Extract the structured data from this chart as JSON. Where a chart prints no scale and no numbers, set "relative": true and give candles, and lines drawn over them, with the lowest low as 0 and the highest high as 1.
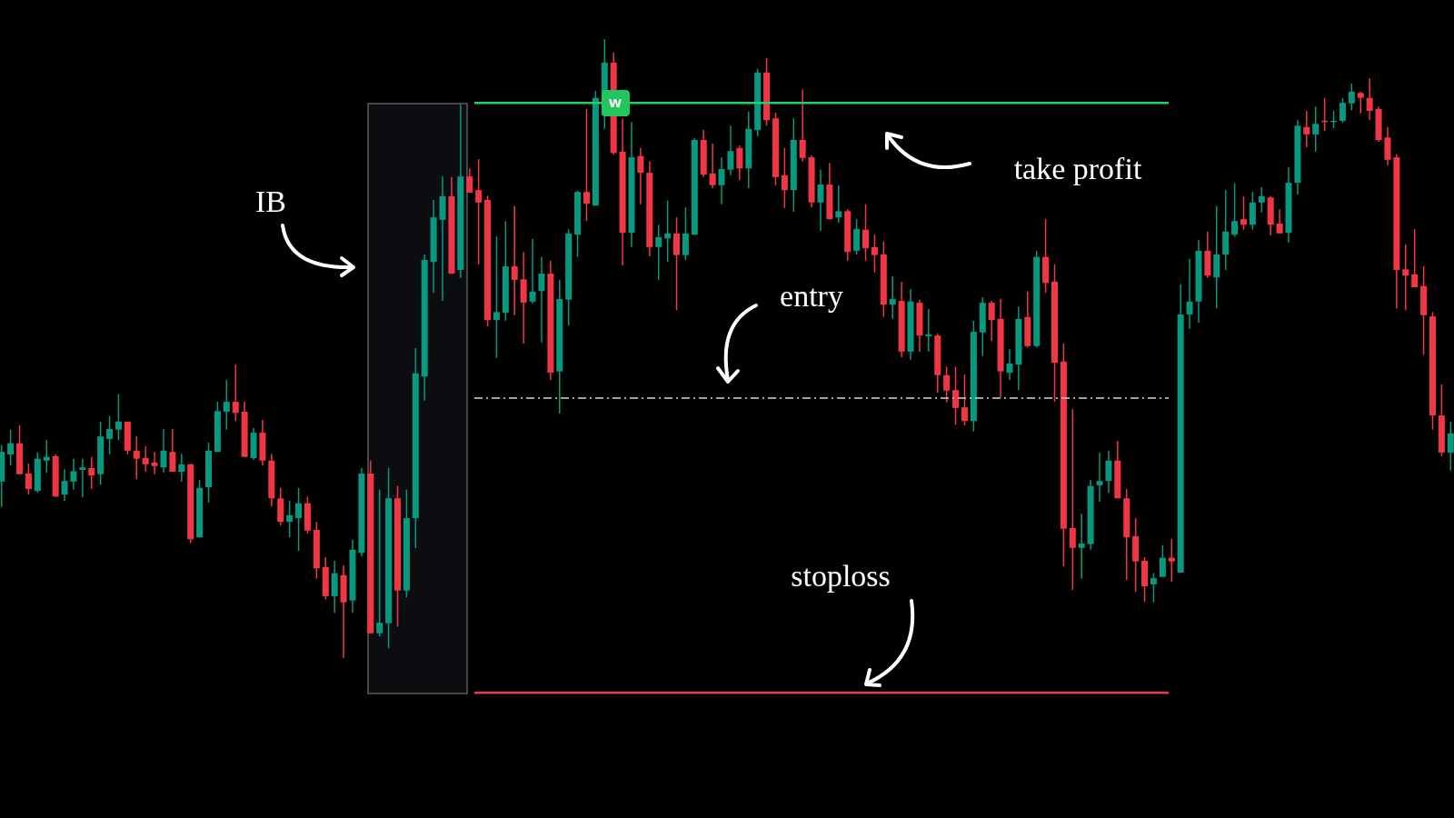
{
  "chart_data": {
    "type": "candlestick",
    "relative": true,
    "categories": [
      null,
      null,
      null,
      null,
      null,
      null,
      null,
      null,
      null,
      null,
      null,
      null,
      null,
      null,
      null,
      null,
      null,
      null,
      null,
      null,
      null,
      null,
      null,
      null,
      null,
      null,
      null,
      null,
      null,
      null,
      null,
      null,
      null,
      null,
      null,
      null,
      null,
      null,
      null,
      null,
      null,
      null,
      null,
      null,
      null,
      null,
      null,
      null,
      null,
      null,
      null,
      null,
      null,
      null,
      null,
      null,
      null,
      null,
      null,
      null,
      null,
      null,
      null,
      null,
      null,
      null,
      null,
      null,
      null,
      null,
      null,
      null,
      null,
      null,
      null,
      null,
      null,
      null,
      null,
      null,
      null,
      null,
      null,
      null,
      null,
      null,
      null,
      null,
      null,
      null,
      null,
      null,
      null,
      null,
      null,
      null,
      null,
      null,
      null,
      null,
      null,
      null,
      null,
      null,
      null,
      null,
      null,
      null,
      null,
      null,
      null,
      null,
      null,
      null,
      null,
      null,
      null,
      null,
      null,
      null,
      null,
      null,
      null,
      null,
      null,
      null,
      null,
      null,
      null,
      null,
      null,
      null,
      null,
      null,
      null,
      null,
      null,
      null,
      null,
      null,
      null,
      null,
      null,
      null,
      null,
      null,
      null,
      null,
      null,
      null,
      null,
      null,
      null,
      null,
      null,
      null,
      null,
      null,
      null,
      null,
      null,
      null
    ],
    "ohlc": [
      [
        0.285,
        0.344,
        0.244,
        0.333
      ],
      [
        0.329,
        0.369,
        0.311,
        0.347
      ],
      [
        0.347,
        0.376,
        0.297,
        0.297
      ],
      [
        0.298,
        0.314,
        0.264,
        0.273
      ],
      [
        0.27,
        0.332,
        0.267,
        0.322
      ],
      [
        0.319,
        0.352,
        0.3,
        0.325
      ],
      [
        0.326,
        0.329,
        0.26,
        0.261
      ],
      [
        0.264,
        0.305,
        0.254,
        0.286
      ],
      [
        0.285,
        0.322,
        0.272,
        0.302
      ],
      [
        0.304,
        0.322,
        0.26,
        0.308
      ],
      [
        0.307,
        0.325,
        0.273,
        0.295
      ],
      [
        0.297,
        0.382,
        0.28,
        0.358
      ],
      [
        0.354,
        0.391,
        0.329,
        0.37
      ],
      [
        0.369,
        0.426,
        0.352,
        0.382
      ],
      [
        0.382,
        0.382,
        0.329,
        0.335
      ],
      [
        0.335,
        0.358,
        0.289,
        0.322
      ],
      [
        0.323,
        0.342,
        0.301,
        0.313
      ],
      [
        0.316,
        0.333,
        0.297,
        0.31
      ],
      [
        0.308,
        0.37,
        0.3,
        0.335
      ],
      [
        0.333,
        0.37,
        0.301,
        0.301
      ],
      [
        0.301,
        0.33,
        0.285,
        0.313
      ],
      [
        0.313,
        0.314,
        0.186,
        0.192
      ],
      [
        0.195,
        0.288,
        0.195,
        0.275
      ],
      [
        0.276,
        0.348,
        0.251,
        0.335
      ],
      [
        0.333,
        0.414,
        0.333,
        0.399
      ],
      [
        0.398,
        0.449,
        0.369,
        0.414
      ],
      [
        0.414,
        0.474,
        0.383,
        0.396
      ],
      [
        0.398,
        0.414,
        0.325,
        0.325
      ],
      [
        0.323,
        0.372,
        0.32,
        0.364
      ],
      [
        0.364,
        0.385,
        0.311,
        0.319
      ],
      [
        0.319,
        0.33,
        0.245,
        0.258
      ],
      [
        0.258,
        0.275,
        0.214,
        0.22
      ],
      [
        0.22,
        0.254,
        0.195,
        0.231
      ],
      [
        0.226,
        0.275,
        0.173,
        0.25
      ],
      [
        0.25,
        0.261,
        0.201,
        0.206
      ],
      [
        0.207,
        0.22,
        0.128,
        0.145
      ],
      [
        0.147,
        0.163,
        0.095,
        0.1
      ],
      [
        0.1,
        0.157,
        0.073,
        0.137
      ],
      [
        0.134,
        0.15,
        0,
        0.09
      ],
      [
        0.093,
        0.191,
        0.073,
        0.175
      ],
      [
        0.17,
        0.307,
        0.164,
        0.298
      ],
      [
        0.298,
        0.319,
        0.04,
        0.04
      ],
      [
        0.04,
        0.272,
        0.035,
        0.057
      ],
      [
        0.056,
        0.307,
        0.016,
        0.258
      ],
      [
        0.258,
        0.278,
        0.051,
        0.109
      ],
      [
        0.109,
        0.272,
        0.098,
        0.226
      ],
      [
        0.226,
        0.501,
        0.178,
        0.46
      ],
      [
        0.455,
        0.652,
        0.416,
        0.643
      ],
      [
        0.64,
        0.74,
        0.59,
        0.712
      ],
      [
        0.708,
        0.778,
        0.577,
        0.746
      ],
      [
        0.746,
        0.777,
        0.621,
        0.621
      ],
      [
        0.627,
        0.894,
        0.614,
        0.778
      ],
      [
        0.778,
        0.791,
        0.752,
        0.752
      ],
      [
        0.756,
        0.806,
        0.636,
        0.736
      ],
      [
        0.74,
        0.747,
        0.536,
        0.546
      ],
      [
        0.546,
        0.681,
        0.485,
        0.559
      ],
      [
        0.558,
        0.706,
        0.545,
        0.633
      ],
      [
        0.633,
        0.73,
        0.554,
        0.611
      ],
      [
        0.612,
        0.656,
        0.508,
        0.574
      ],
      [
        0.576,
        0.677,
        0.573,
        0.592
      ],
      [
        0.593,
        0.648,
        0.51,
        0.621
      ],
      [
        0.621,
        0.642,
        0.449,
        0.461
      ],
      [
        0.463,
        0.611,
        0.395,
        0.58
      ],
      [
        0.579,
        0.693,
        0.537,
        0.686
      ],
      [
        0.684,
        0.755,
        0.648,
        0.753
      ],
      [
        0.753,
        0.887,
        0.706,
        0.734
      ],
      [
        0.731,
        0.916,
        0.731,
        0.905
      ],
      [
        0.877,
        1,
        0.855,
        0.962
      ],
      [
        0.962,
        0.978,
        0.813,
        0.816
      ],
      [
        0.818,
        0.872,
        0.634,
        0.687
      ],
      [
        0.687,
        0.866,
        0.664,
        0.809
      ],
      [
        0.811,
        0.824,
        0.733,
        0.784
      ],
      [
        0.784,
        0.802,
        0.649,
        0.664
      ],
      [
        0.664,
        0.7,
        0.611,
        0.68
      ],
      [
        0.678,
        0.739,
        0.64,
        0.686
      ],
      [
        0.686,
        0.712,
        0.562,
        0.651
      ],
      [
        0.651,
        0.728,
        0.643,
        0.686
      ],
      [
        0.684,
        0.84,
        0.684,
        0.837
      ],
      [
        0.837,
        0.853,
        0.777,
        0.781
      ],
      [
        0.783,
        0.831,
        0.759,
        0.764
      ],
      [
        0.764,
        0.809,
        0.733,
        0.79
      ],
      [
        0.789,
        0.86,
        0.78,
        0.819
      ],
      [
        0.824,
        0.828,
        0.772,
        0.791
      ],
      [
        0.791,
        0.883,
        0.759,
        0.855
      ],
      [
        0.853,
        0.952,
        0.843,
        0.946
      ],
      [
        0.946,
        0.969,
        0.86,
        0.869
      ],
      [
        0.872,
        0.881,
        0.764,
        0.777
      ],
      [
        0.78,
        0.824,
        0.727,
        0.756
      ],
      [
        0.756,
        0.872,
        0.721,
        0.837
      ],
      [
        0.837,
        0.919,
        0.802,
        0.808
      ],
      [
        0.809,
        0.812,
        0.728,
        0.736
      ],
      [
        0.736,
        0.789,
        0.69,
        0.765
      ],
      [
        0.765,
        0.8,
        0.709,
        0.709
      ],
      [
        0.712,
        0.764,
        0.703,
        0.722
      ],
      [
        0.722,
        0.725,
        0.642,
        0.656
      ],
      [
        0.658,
        0.709,
        0.652,
        0.693
      ],
      [
        0.692,
        0.733,
        0.642,
        0.662
      ],
      [
        0.664,
        0.684,
        0.623,
        0.651
      ],
      [
        0.652,
        0.673,
        0.551,
        0.571
      ],
      [
        0.571,
        0.617,
        0.548,
        0.58
      ],
      [
        0.577,
        0.608,
        0.486,
        0.495
      ],
      [
        0.495,
        0.596,
        0.482,
        0.576
      ],
      [
        0.574,
        0.579,
        0.495,
        0.521
      ],
      [
        0.52,
        0.564,
        0.495,
        0.523
      ],
      [
        0.521,
        0.524,
        0.429,
        0.457
      ],
      [
        0.457,
        0.471,
        0.413,
        0.432
      ],
      [
        0.433,
        0.471,
        0.377,
        0.404
      ],
      [
        0.405,
        0.458,
        0.376,
        0.383
      ],
      [
        0.383,
        0.545,
        0.366,
        0.527
      ],
      [
        0.526,
        0.583,
        0.488,
        0.574
      ],
      [
        0.574,
        0.577,
        0.512,
        0.546
      ],
      [
        0.548,
        0.58,
        0.421,
        0.463
      ],
      [
        0.461,
        0.499,
        0.449,
        0.476
      ],
      [
        0.474,
        0.568,
        0.433,
        0.548
      ],
      [
        0.551,
        0.592,
        0.502,
        0.504
      ],
      [
        0.504,
        0.658,
        0.502,
        0.648
      ],
      [
        0.648,
        0.709,
        0.59,
        0.606
      ],
      [
        0.608,
        0.636,
        0.414,
        0.477
      ],
      [
        0.479,
        0.508,
        0.148,
        0.209
      ],
      [
        0.21,
        0.402,
        0.11,
        0.178
      ],
      [
        0.178,
        0.233,
        0.128,
        0.185
      ],
      [
        0.184,
        0.288,
        0.175,
        0.278
      ],
      [
        0.279,
        0.332,
        0.253,
        0.286
      ],
      [
        0.286,
        0.335,
        0.267,
        0.319
      ],
      [
        0.319,
        0.351,
        0.258,
        0.258
      ],
      [
        0.258,
        0.273,
        0.126,
        0.195
      ],
      [
        0.197,
        0.226,
        0.107,
        0.156
      ],
      [
        0.157,
        0.163,
        0.091,
        0.116
      ],
      [
        0.119,
        0.137,
        0.09,
        0.129
      ],
      [
        0.131,
        0.182,
        0.131,
        0.162
      ],
      [
        0.162,
        0.192,
        0.123,
        0.156
      ],
      [
        0.138,
        0.604,
        0.138,
        0.555
      ],
      [
        0.555,
        0.645,
        0.532,
        0.576
      ],
      [
        0.576,
        0.675,
        0.542,
        0.658
      ],
      [
        0.658,
        0.689,
        0.614,
        0.618
      ],
      [
        0.615,
        0.73,
        0.565,
        0.652
      ],
      [
        0.652,
        0.756,
        0.627,
        0.689
      ],
      [
        0.684,
        0.767,
        0.681,
        0.706
      ],
      [
        0.709,
        0.746,
        0.692,
        0.7
      ],
      [
        0.7,
        0.753,
        0.692,
        0.736
      ],
      [
        0.736,
        0.761,
        0.72,
        0.746
      ],
      [
        0.744,
        0.746,
        0.683,
        0.7
      ],
      [
        0.702,
        0.725,
        0.686,
        0.686
      ],
      [
        0.687,
        0.793,
        0.671,
        0.768
      ],
      [
        0.768,
        0.869,
        0.749,
        0.86
      ],
      [
        0.858,
        0.884,
        0.825,
        0.846
      ],
      [
        0.846,
        0.891,
        0.818,
        0.863
      ],
      [
        0.868,
        0.905,
        0.852,
        0.866
      ],
      [
        0.866,
        0.884,
        0.856,
        0.868
      ],
      [
        0.868,
        0.905,
        0.865,
        0.897
      ],
      [
        0.896,
        0.928,
        0.885,
        0.915
      ],
      [
        0.913,
        0.915,
        0.88,
        0.905
      ],
      [
        0.905,
        0.937,
        0.869,
        0.884
      ],
      [
        0.887,
        0.891,
        0.834,
        0.837
      ],
      [
        0.841,
        0.858,
        0.796,
        0.805
      ],
      [
        0.809,
        0.814,
        0.565,
        0.627
      ],
      [
        0.628,
        0.668,
        0.562,
        0.618
      ],
      [
        0.62,
        0.693,
        0.599,
        0.599
      ],
      [
        0.601,
        0.633,
        0.49,
        0.554
      ],
      [
        0.552,
        0.559,
        0.369,
        0.392
      ],
      [
        0.392,
        0.442,
        0.326,
        0.332
      ],
      [
        0.332,
        0.382,
        0.303,
        0.363
      ]
    ],
    "ref_lines": [
      {
        "axis": "y",
        "value": 0.897,
        "color": "#1fd26a",
        "line_style": "solid"
      },
      {
        "axis": "y",
        "value": 0.42,
        "color": "#d8d8cc",
        "line_style": "dashed"
      },
      {
        "axis": "y",
        "value": -0.056,
        "color": "#e8384f",
        "line_style": "solid"
      }
    ],
    "annotations": [
      "IB",
      "take profit",
      "entry",
      "stoploss",
      "W"
    ]
  }
}
